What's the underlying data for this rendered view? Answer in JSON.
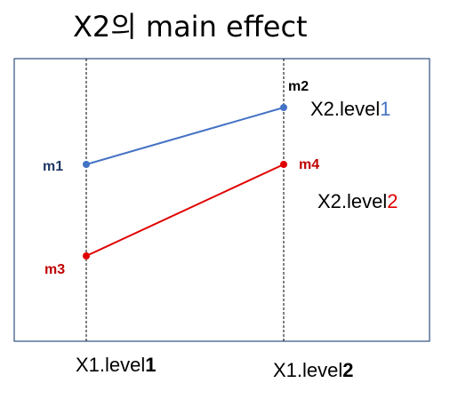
{
  "title": "X2의 main effect",
  "colors": {
    "frame": "#2F4F7F",
    "series_level1": "#4472C4",
    "series_level2": "#E00000",
    "m1_label": "#1F3864",
    "m2_label": "#000000",
    "m3_label": "#C00000",
    "m4_label": "#C00000"
  },
  "x_categories": [
    {
      "prefix": "X1.level",
      "suffix": "1"
    },
    {
      "prefix": "X1.level",
      "suffix": "2"
    }
  ],
  "legend": [
    {
      "prefix": "X2.level",
      "suffix": "1"
    },
    {
      "prefix": "X2.level",
      "suffix": "2"
    }
  ],
  "points": {
    "m1": "m1",
    "m2": "m2",
    "m3": "m3",
    "m4": "m4"
  }
}
